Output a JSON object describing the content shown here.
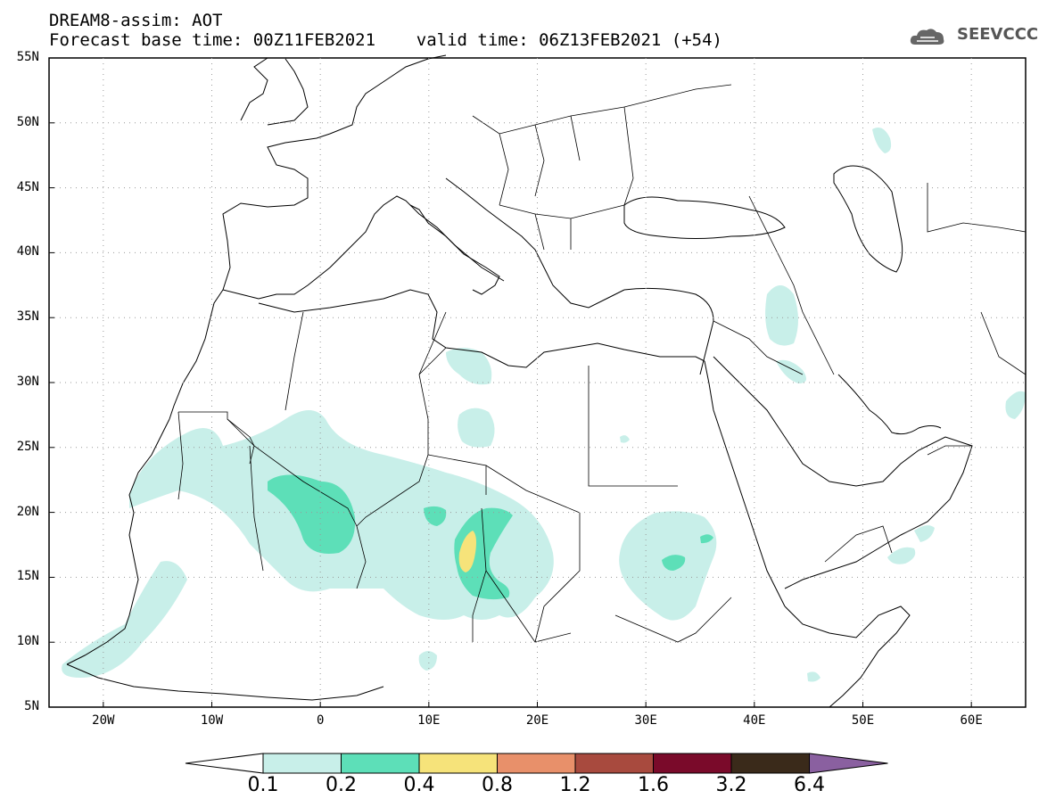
{
  "header": {
    "line1": "DREAM8-assim: AOT",
    "line2": "Forecast base time: 00Z11FEB2021    valid time: 06Z13FEB2021 (+54)"
  },
  "logo": {
    "text": "SEEVCCC",
    "icon": "cloud-icon"
  },
  "map": {
    "lon_range": [
      -25,
      65
    ],
    "lat_range": [
      5,
      55
    ],
    "lat_labels": [
      "5N",
      "10N",
      "15N",
      "20N",
      "25N",
      "30N",
      "35N",
      "40N",
      "45N",
      "50N",
      "55N"
    ],
    "lon_labels": [
      "20W",
      "10W",
      "0",
      "10E",
      "20E",
      "30E",
      "40E",
      "50E",
      "60E"
    ],
    "grid": "dotted"
  },
  "colorbar": {
    "labels": [
      "0.1",
      "0.2",
      "0.4",
      "0.8",
      "1.2",
      "1.6",
      "3.2",
      "6.4"
    ],
    "colors": [
      "#ffffff",
      "#c8efe9",
      "#5ddfb8",
      "#f6e37a",
      "#e8906a",
      "#a84a3e",
      "#7a0a2a",
      "#3a2a1a",
      "#8a60a0"
    ]
  }
}
